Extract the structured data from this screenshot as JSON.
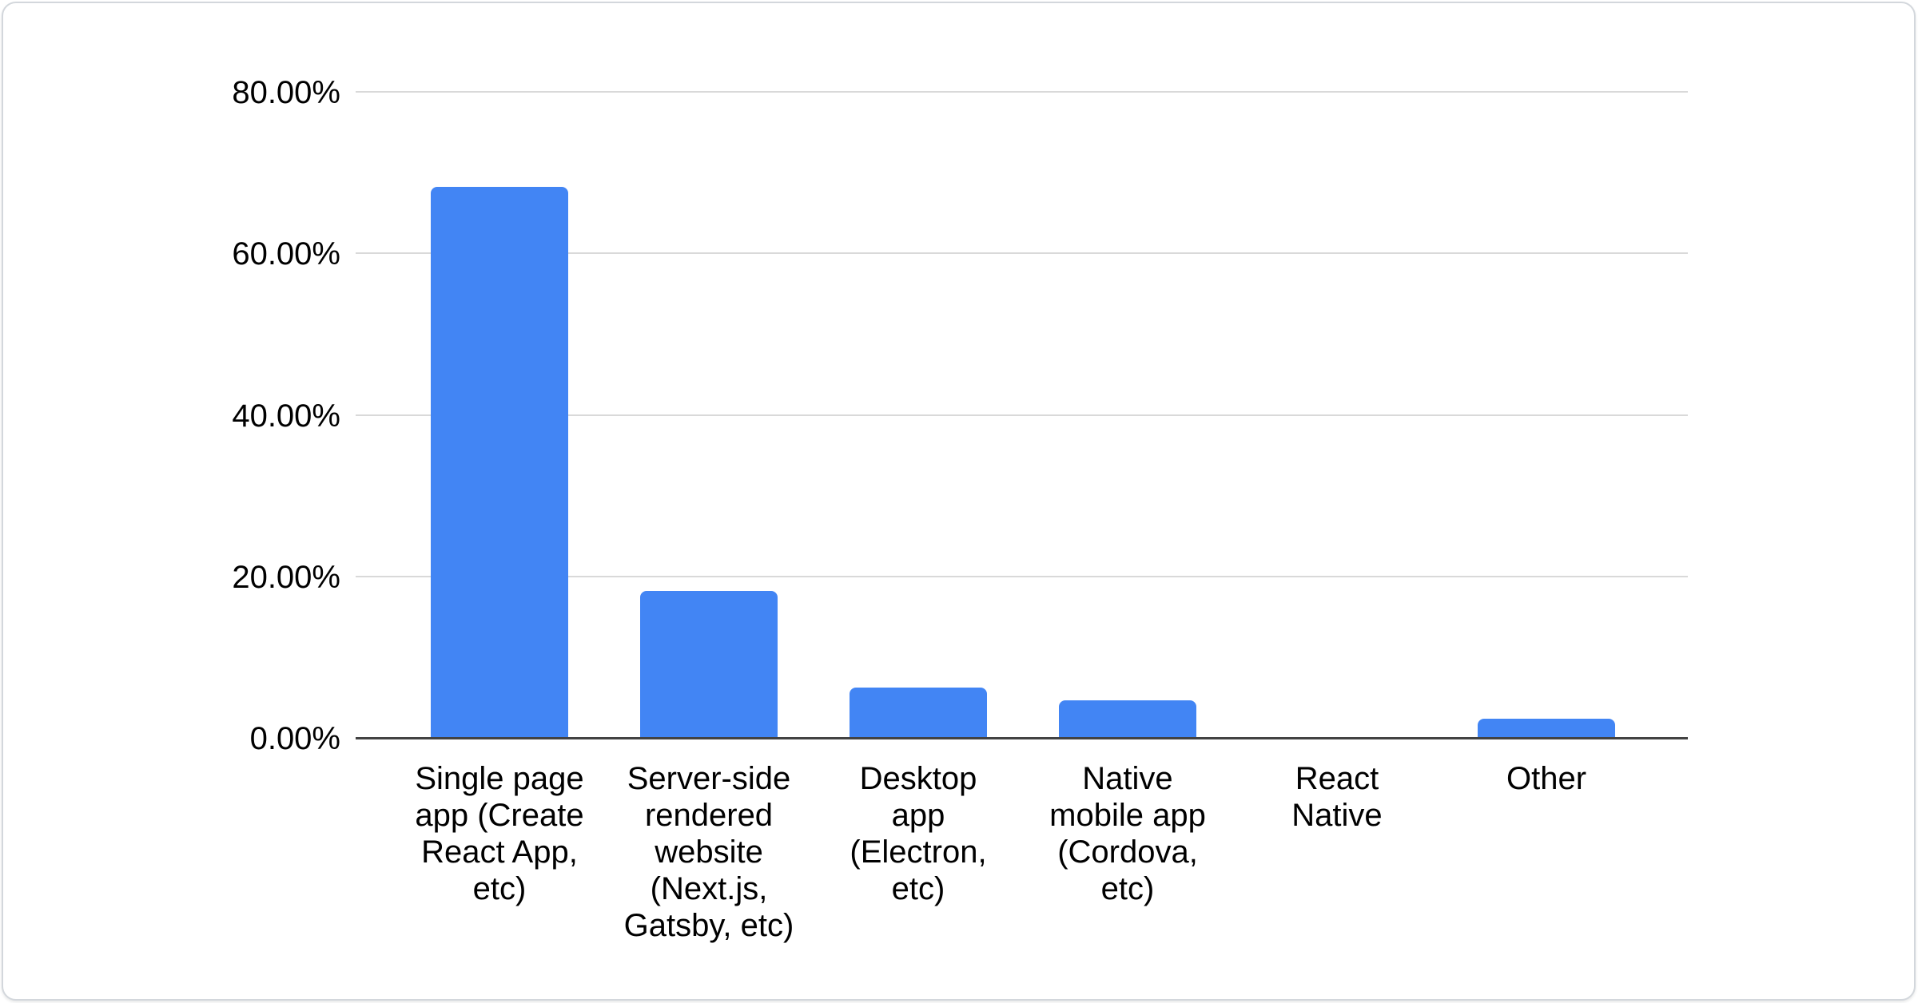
{
  "chart_data": {
    "type": "bar",
    "title": "",
    "xlabel": "",
    "ylabel": "",
    "unit": "%",
    "categories": [
      "Single page app (Create React App, etc)",
      "Server-side rendered website (Next.js, Gatsby, etc)",
      "Desktop app (Electron, etc)",
      "Native mobile app (Cordova, etc)",
      "React Native",
      "Other"
    ],
    "category_label_lines": [
      "Single page\napp (Create\nReact App,\netc)",
      "Server-side\nrendered\nwebsite\n(Next.js,\nGatsby, etc)",
      "Desktop\napp\n(Electron,\netc)",
      "Native\nmobile app\n(Cordova,\netc)",
      "React\nNative",
      "Other"
    ],
    "values": [
      68.2,
      18.2,
      6.2,
      4.6,
      0,
      2.4
    ],
    "ylim": [
      0,
      80
    ],
    "yticks": {
      "labels": [
        "80.00%",
        "60.00%",
        "40.00%",
        "20.00%",
        "0.00%"
      ],
      "values": [
        80,
        60,
        40,
        20,
        0
      ]
    },
    "grid": "horizontal-only",
    "legend": "none",
    "bar_color": "#4285f4",
    "gridline_color": "#d9d9d9",
    "axis_line_color": "#424242",
    "text_color": "#000000"
  }
}
